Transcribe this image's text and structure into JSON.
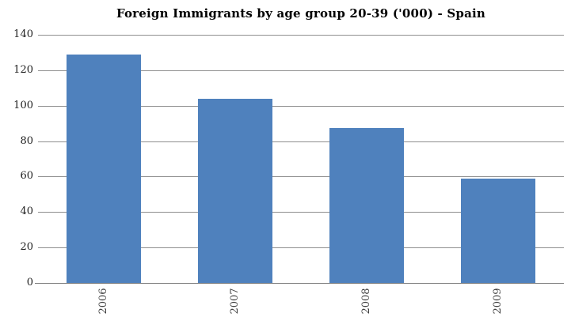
{
  "chart_data": {
    "type": "bar",
    "title": "Foreign Immigrants by age group 20-39 ('000) - Spain",
    "categories": [
      "2006",
      "2007",
      "2008",
      "2009"
    ],
    "values": [
      129,
      104,
      87.5,
      59
    ],
    "xlabel": "",
    "ylabel": "",
    "ylim": [
      0,
      140
    ],
    "yticks": [
      0,
      20,
      40,
      60,
      80,
      100,
      120,
      140
    ],
    "grid": true,
    "legend": "none",
    "x_label_rotation_deg": -90,
    "colors": {
      "bar": "#4F81BD",
      "gridline": "#8e8e8e",
      "axis_line": "#7f7f7f",
      "title_text": "#000000",
      "y_tick_text": "#1f1f1f",
      "x_tick_text": "#3f3f3f",
      "background": "#ffffff"
    }
  }
}
